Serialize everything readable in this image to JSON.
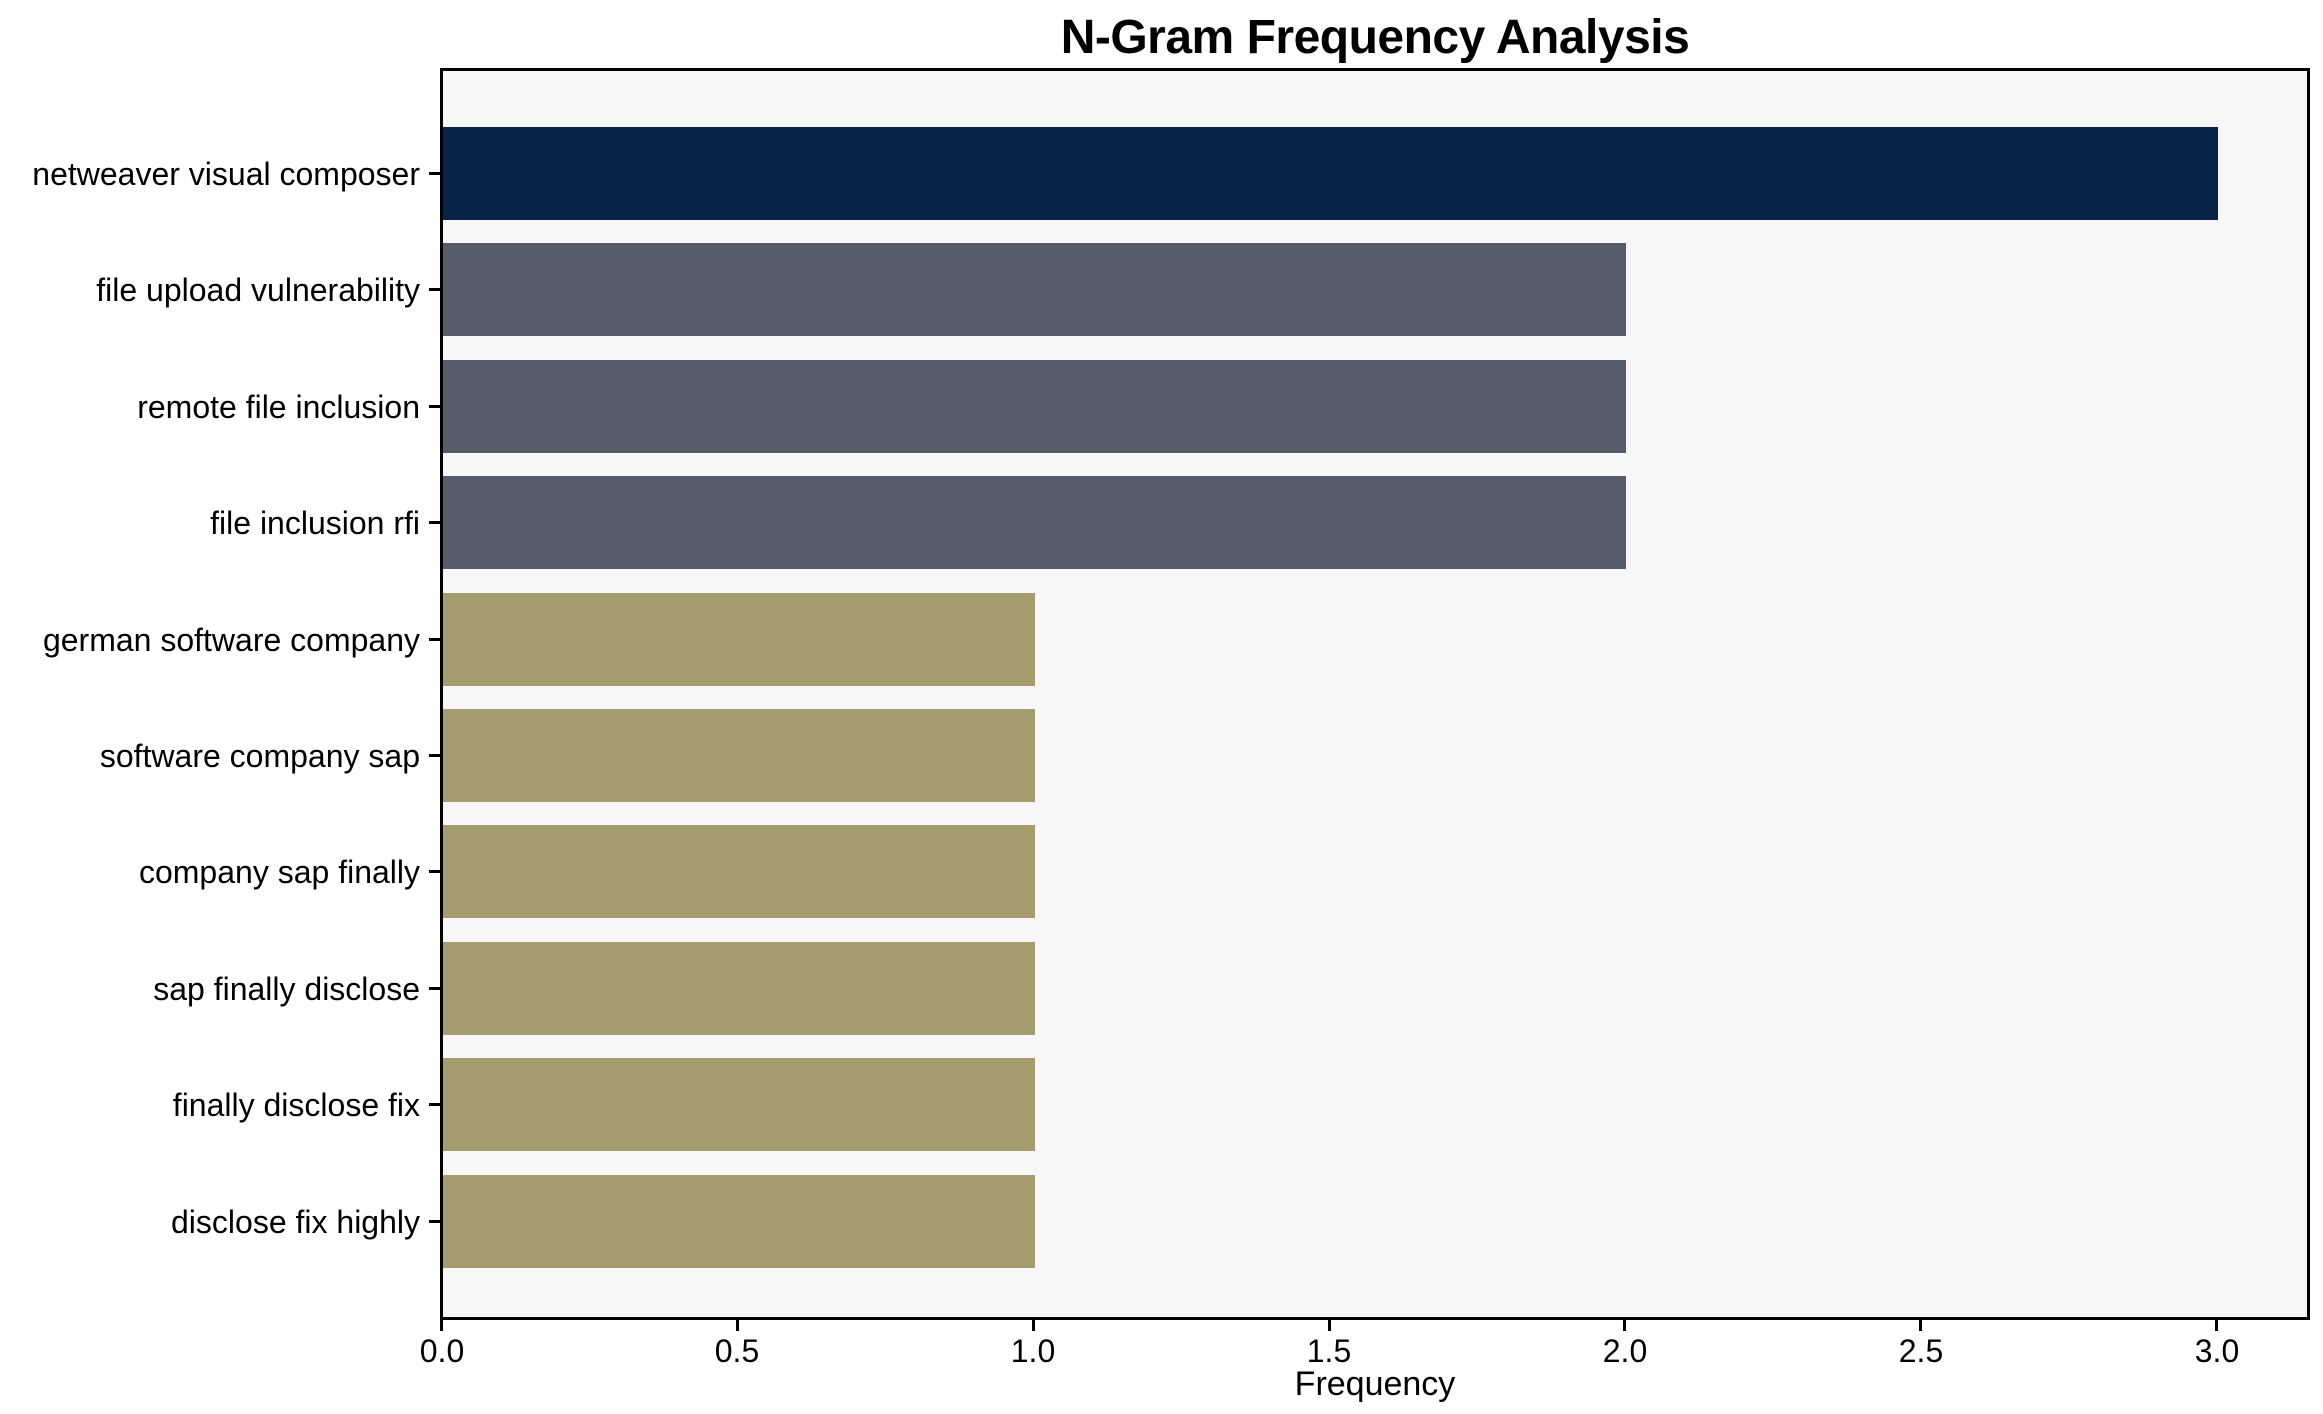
{
  "chart_data": {
    "type": "bar",
    "orientation": "horizontal",
    "title": "N-Gram Frequency Analysis",
    "xlabel": "Frequency",
    "ylabel": "",
    "categories": [
      "netweaver visual composer",
      "file upload vulnerability",
      "remote file inclusion",
      "file inclusion rfi",
      "german software company",
      "software company sap",
      "company sap finally",
      "sap finally disclose",
      "finally disclose fix",
      "disclose fix highly"
    ],
    "values": [
      3,
      2,
      2,
      2,
      1,
      1,
      1,
      1,
      1,
      1
    ],
    "bar_colors": [
      "#08234a",
      "#575c6a",
      "#575c6a",
      "#575c6a",
      "#a59c70",
      "#a59c70",
      "#a59c70",
      "#a59c70",
      "#a59c70",
      "#a59c70"
    ],
    "x_tick_labels": [
      "0.0",
      "0.5",
      "1.0",
      "1.5",
      "2.0",
      "2.5",
      "3.0"
    ],
    "x_tick_values": [
      0,
      0.5,
      1.0,
      1.5,
      2.0,
      2.5,
      3.0
    ],
    "xlim": [
      0,
      3.16
    ],
    "grid": false,
    "legend_position": "none",
    "plot_background": "#f7f7f7",
    "figure_background": "#ffffff",
    "spine_color": "#000000",
    "text_color": "#000000"
  }
}
